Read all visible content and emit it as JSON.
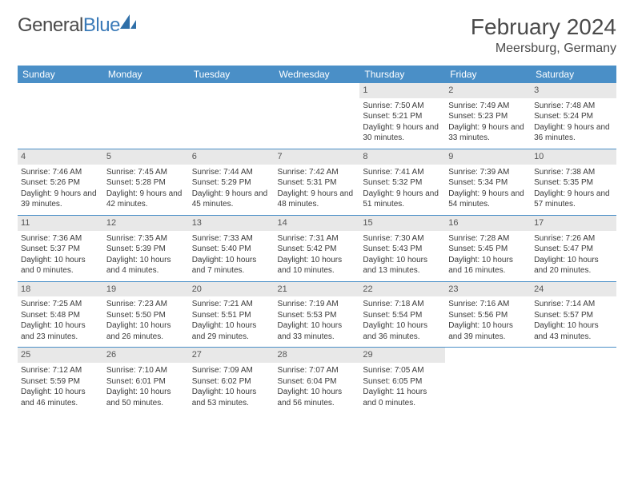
{
  "brand": {
    "name_a": "General",
    "name_b": "Blue"
  },
  "title": "February 2024",
  "location": "Meersburg, Germany",
  "header_bg": "#4a8fc7",
  "daynum_bg": "#e8e8e8",
  "text_color": "#3a3a3a",
  "weekdays": [
    "Sunday",
    "Monday",
    "Tuesday",
    "Wednesday",
    "Thursday",
    "Friday",
    "Saturday"
  ],
  "weeks": [
    [
      null,
      null,
      null,
      null,
      {
        "n": "1",
        "sr": "7:50 AM",
        "ss": "5:21 PM",
        "dl": "9 hours and 30 minutes."
      },
      {
        "n": "2",
        "sr": "7:49 AM",
        "ss": "5:23 PM",
        "dl": "9 hours and 33 minutes."
      },
      {
        "n": "3",
        "sr": "7:48 AM",
        "ss": "5:24 PM",
        "dl": "9 hours and 36 minutes."
      }
    ],
    [
      {
        "n": "4",
        "sr": "7:46 AM",
        "ss": "5:26 PM",
        "dl": "9 hours and 39 minutes."
      },
      {
        "n": "5",
        "sr": "7:45 AM",
        "ss": "5:28 PM",
        "dl": "9 hours and 42 minutes."
      },
      {
        "n": "6",
        "sr": "7:44 AM",
        "ss": "5:29 PM",
        "dl": "9 hours and 45 minutes."
      },
      {
        "n": "7",
        "sr": "7:42 AM",
        "ss": "5:31 PM",
        "dl": "9 hours and 48 minutes."
      },
      {
        "n": "8",
        "sr": "7:41 AM",
        "ss": "5:32 PM",
        "dl": "9 hours and 51 minutes."
      },
      {
        "n": "9",
        "sr": "7:39 AM",
        "ss": "5:34 PM",
        "dl": "9 hours and 54 minutes."
      },
      {
        "n": "10",
        "sr": "7:38 AM",
        "ss": "5:35 PM",
        "dl": "9 hours and 57 minutes."
      }
    ],
    [
      {
        "n": "11",
        "sr": "7:36 AM",
        "ss": "5:37 PM",
        "dl": "10 hours and 0 minutes."
      },
      {
        "n": "12",
        "sr": "7:35 AM",
        "ss": "5:39 PM",
        "dl": "10 hours and 4 minutes."
      },
      {
        "n": "13",
        "sr": "7:33 AM",
        "ss": "5:40 PM",
        "dl": "10 hours and 7 minutes."
      },
      {
        "n": "14",
        "sr": "7:31 AM",
        "ss": "5:42 PM",
        "dl": "10 hours and 10 minutes."
      },
      {
        "n": "15",
        "sr": "7:30 AM",
        "ss": "5:43 PM",
        "dl": "10 hours and 13 minutes."
      },
      {
        "n": "16",
        "sr": "7:28 AM",
        "ss": "5:45 PM",
        "dl": "10 hours and 16 minutes."
      },
      {
        "n": "17",
        "sr": "7:26 AM",
        "ss": "5:47 PM",
        "dl": "10 hours and 20 minutes."
      }
    ],
    [
      {
        "n": "18",
        "sr": "7:25 AM",
        "ss": "5:48 PM",
        "dl": "10 hours and 23 minutes."
      },
      {
        "n": "19",
        "sr": "7:23 AM",
        "ss": "5:50 PM",
        "dl": "10 hours and 26 minutes."
      },
      {
        "n": "20",
        "sr": "7:21 AM",
        "ss": "5:51 PM",
        "dl": "10 hours and 29 minutes."
      },
      {
        "n": "21",
        "sr": "7:19 AM",
        "ss": "5:53 PM",
        "dl": "10 hours and 33 minutes."
      },
      {
        "n": "22",
        "sr": "7:18 AM",
        "ss": "5:54 PM",
        "dl": "10 hours and 36 minutes."
      },
      {
        "n": "23",
        "sr": "7:16 AM",
        "ss": "5:56 PM",
        "dl": "10 hours and 39 minutes."
      },
      {
        "n": "24",
        "sr": "7:14 AM",
        "ss": "5:57 PM",
        "dl": "10 hours and 43 minutes."
      }
    ],
    [
      {
        "n": "25",
        "sr": "7:12 AM",
        "ss": "5:59 PM",
        "dl": "10 hours and 46 minutes."
      },
      {
        "n": "26",
        "sr": "7:10 AM",
        "ss": "6:01 PM",
        "dl": "10 hours and 50 minutes."
      },
      {
        "n": "27",
        "sr": "7:09 AM",
        "ss": "6:02 PM",
        "dl": "10 hours and 53 minutes."
      },
      {
        "n": "28",
        "sr": "7:07 AM",
        "ss": "6:04 PM",
        "dl": "10 hours and 56 minutes."
      },
      {
        "n": "29",
        "sr": "7:05 AM",
        "ss": "6:05 PM",
        "dl": "11 hours and 0 minutes."
      },
      null,
      null
    ]
  ],
  "labels": {
    "sunrise": "Sunrise:",
    "sunset": "Sunset:",
    "daylight": "Daylight:"
  }
}
